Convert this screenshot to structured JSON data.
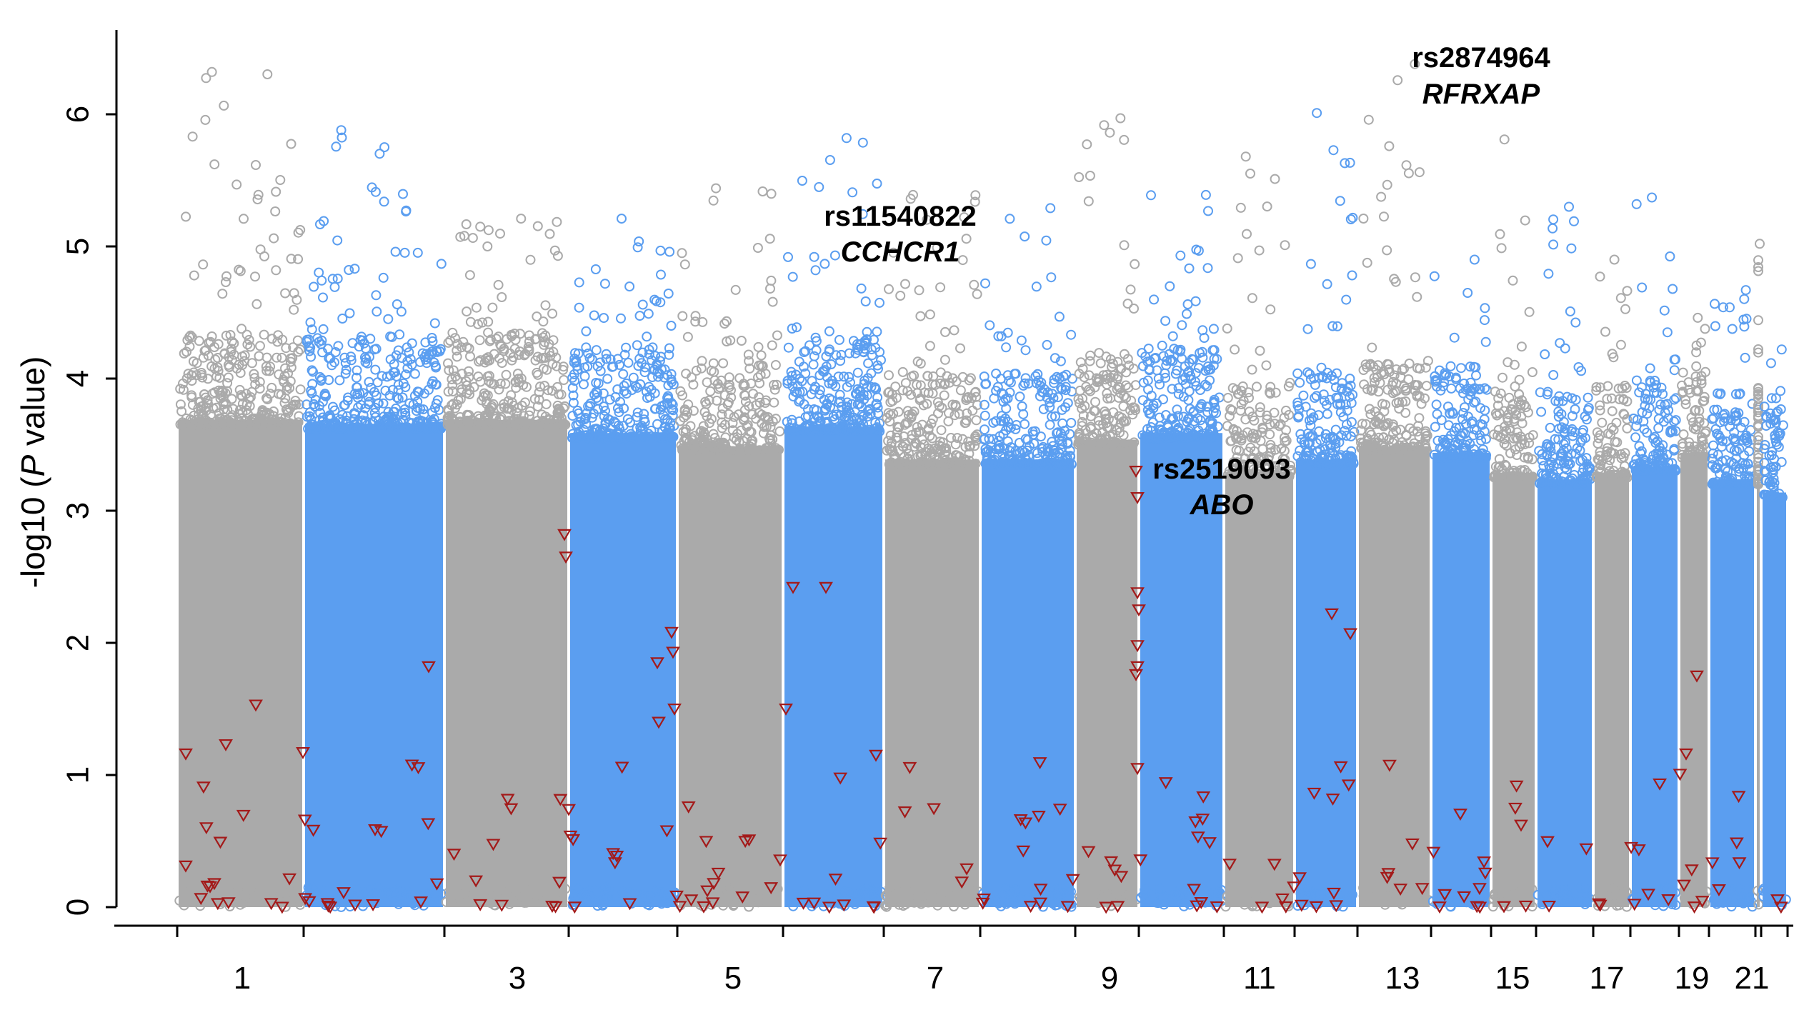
{
  "chart_data": {
    "type": "scatter",
    "title": "",
    "xlabel": "",
    "ylabel": "-log10 (P value)",
    "ylabel_parts": {
      "prefix": "-log10 (",
      "italic": "P",
      "suffix": " value)"
    },
    "ylim": [
      0,
      6.5
    ],
    "y_ticks": [
      "0",
      "1",
      "2",
      "3",
      "4",
      "5",
      "6"
    ],
    "chromosome_tick_labels": [
      "1",
      "3",
      "5",
      "7",
      "9",
      "11",
      "13",
      "15",
      "17",
      "19",
      "21"
    ],
    "chromosomes": [
      {
        "chr": 1,
        "color": "gray",
        "peak": 6.32
      },
      {
        "chr": 2,
        "color": "blue",
        "peak": 5.88
      },
      {
        "chr": 3,
        "color": "gray",
        "peak": 5.21
      },
      {
        "chr": 4,
        "color": "blue",
        "peak": 5.21
      },
      {
        "chr": 5,
        "color": "gray",
        "peak": 5.44
      },
      {
        "chr": 6,
        "color": "blue",
        "peak": 5.82
      },
      {
        "chr": 7,
        "color": "gray",
        "peak": 5.39
      },
      {
        "chr": 8,
        "color": "blue",
        "peak": 5.29
      },
      {
        "chr": 9,
        "color": "gray",
        "peak": 5.97
      },
      {
        "chr": 10,
        "color": "blue",
        "peak": 5.39
      },
      {
        "chr": 11,
        "color": "gray",
        "peak": 5.68
      },
      {
        "chr": 12,
        "color": "blue",
        "peak": 6.01
      },
      {
        "chr": 13,
        "color": "gray",
        "peak": 6.38
      },
      {
        "chr": 14,
        "color": "blue",
        "peak": 4.9
      },
      {
        "chr": 15,
        "color": "gray",
        "peak": 5.81
      },
      {
        "chr": 16,
        "color": "blue",
        "peak": 5.3
      },
      {
        "chr": 17,
        "color": "gray",
        "peak": 4.9
      },
      {
        "chr": 18,
        "color": "blue",
        "peak": 5.37
      },
      {
        "chr": 19,
        "color": "gray",
        "peak": 4.46
      },
      {
        "chr": 20,
        "color": "blue",
        "peak": 4.67
      },
      {
        "chr": 21,
        "color": "gray",
        "peak": 5.02
      },
      {
        "chr": 22,
        "color": "blue",
        "peak": 4.22
      }
    ],
    "annotations": [
      {
        "snp": "rs2874964",
        "gene": "RFRXAP",
        "chr": 13,
        "neg_log10_p": 6.38
      },
      {
        "snp": "rs11540822",
        "gene": "CCHCR1",
        "chr": 6,
        "neg_log10_p": 5.1
      },
      {
        "snp": "rs2519093",
        "gene": "ABO",
        "chr": 9,
        "neg_log10_p": 3.3
      }
    ],
    "series": [
      {
        "name": "",
        "marker": "circle",
        "colors": {
          "odd": "#aaaaaa",
          "even": "#5b9ef0"
        }
      },
      {
        "name": "",
        "marker": "triangle-down",
        "color": "#a31a1a"
      }
    ],
    "grid": false,
    "legend": "none"
  }
}
